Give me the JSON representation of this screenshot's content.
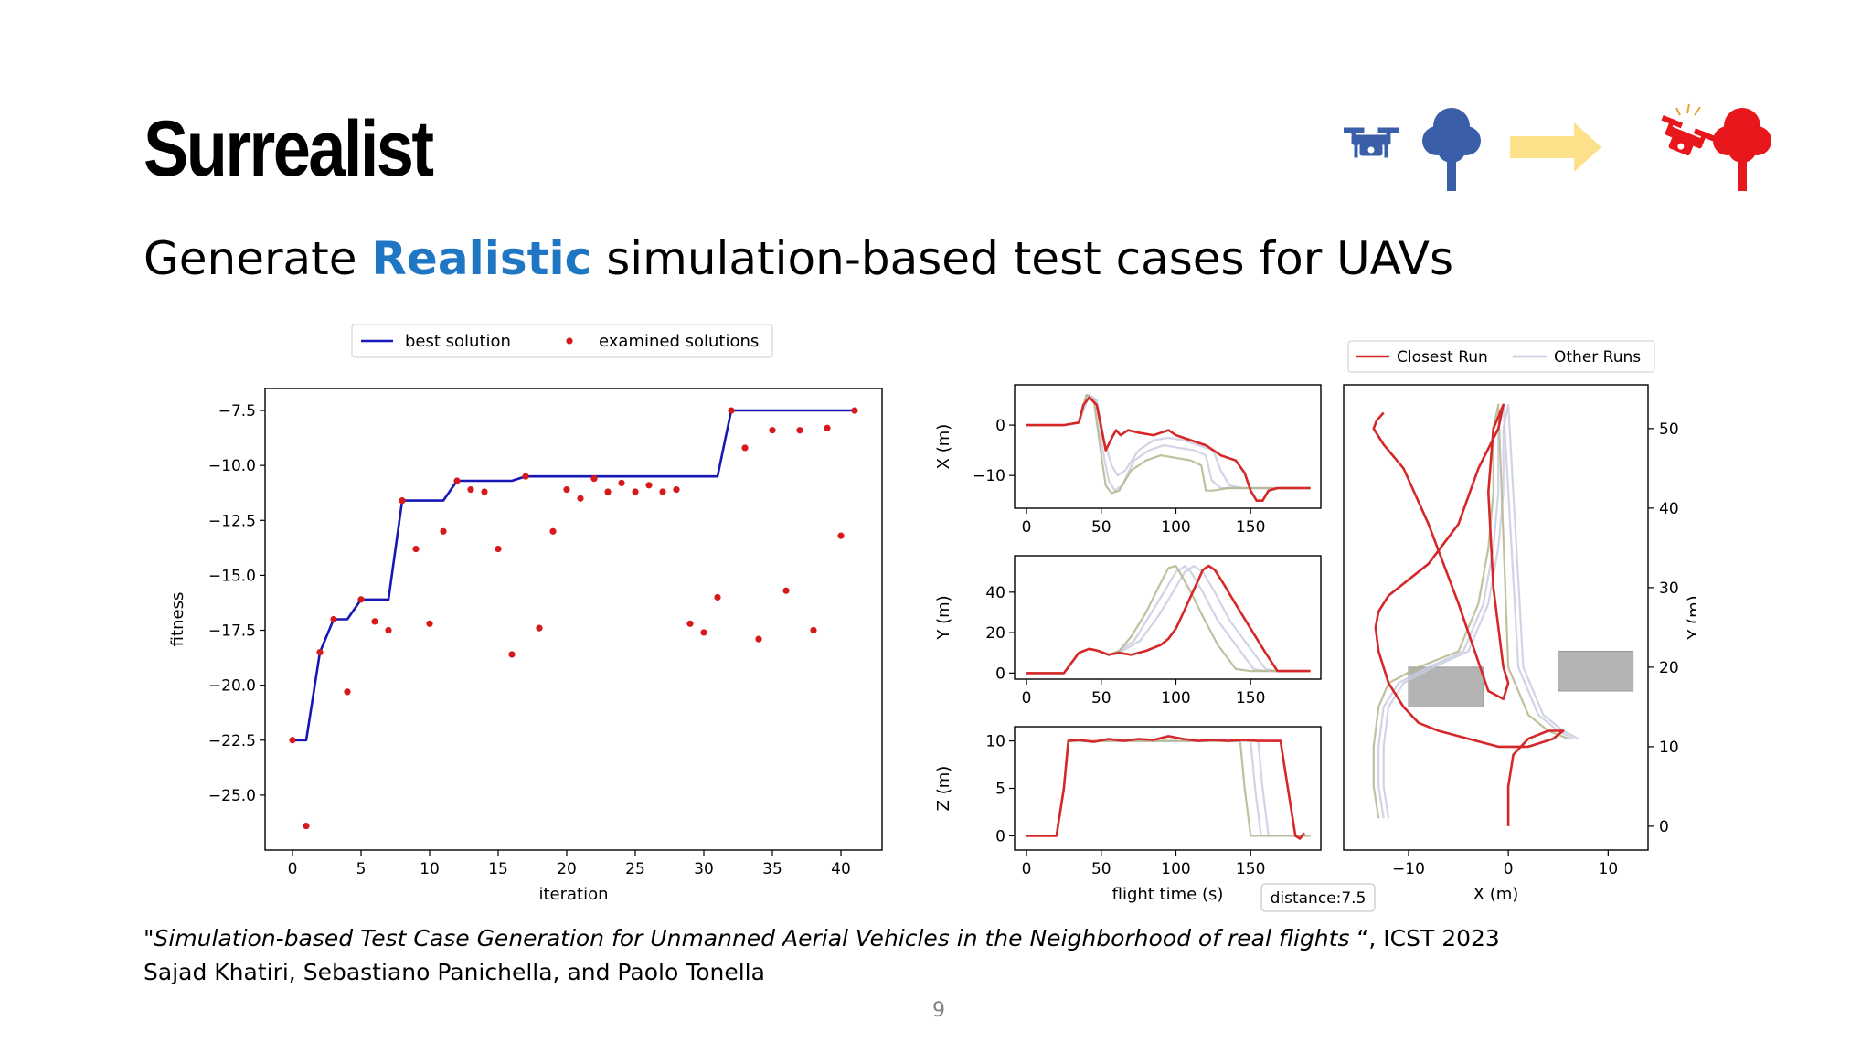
{
  "slide": {
    "title": "Surrealist",
    "subtitle_before": "Generate ",
    "subtitle_highlight": "Realistic",
    "subtitle_after": " simulation-based test cases for UAVs",
    "citation_quote_open": "\"",
    "citation_title": "Simulation-based Test Case Generation for Unmanned Aerial Vehicles in the Neighborhood of real flights",
    "citation_venue": " “, ICST 2023",
    "citation_authors": "Sajad Khatiri, Sebastiano Panichella, and Paolo Tonella",
    "page_number": "9",
    "colors": {
      "highlight": "#1f77c4",
      "drone_blue": "#3a5fa8",
      "crash_red": "#e8171c",
      "arrow_yellow": "#fde08a"
    },
    "icons": [
      "drone-icon",
      "tree-icon",
      "right-arrow-icon",
      "crashed-drone-icon",
      "red-tree-icon"
    ]
  },
  "chart_data": [
    {
      "type": "line",
      "xlabel": "iteration",
      "ylabel": "fitness",
      "xlim": [
        -2,
        43
      ],
      "ylim": [
        -27.5,
        -6.5
      ],
      "xticks": [
        0,
        5,
        10,
        15,
        20,
        25,
        30,
        35,
        40
      ],
      "yticks": [
        -7.5,
        -10.0,
        -12.5,
        -15.0,
        -17.5,
        -20.0,
        -22.5,
        -25.0
      ],
      "ytick_labels": [
        "−7.5",
        "−10.0",
        "−12.5",
        "−15.0",
        "−17.5",
        "−20.0",
        "−22.5",
        "−25.0"
      ],
      "legend": [
        "best solution",
        "examined solutions"
      ],
      "legend_position": "top-center",
      "series": [
        {
          "name": "best solution",
          "color": "#1717b5",
          "x": [
            0,
            1,
            2,
            3,
            4,
            5,
            6,
            7,
            8,
            9,
            10,
            11,
            12,
            13,
            14,
            15,
            16,
            17,
            18,
            19,
            20,
            21,
            22,
            23,
            24,
            25,
            26,
            27,
            28,
            29,
            30,
            31,
            32,
            33,
            34,
            35,
            36,
            37,
            38,
            39,
            40,
            41
          ],
          "y": [
            -22.5,
            -22.5,
            -18.5,
            -17.0,
            -17.0,
            -16.1,
            -16.1,
            -16.1,
            -11.6,
            -11.6,
            -11.6,
            -11.6,
            -10.7,
            -10.7,
            -10.7,
            -10.7,
            -10.7,
            -10.5,
            -10.5,
            -10.5,
            -10.5,
            -10.5,
            -10.5,
            -10.5,
            -10.5,
            -10.5,
            -10.5,
            -10.5,
            -10.5,
            -10.5,
            -10.5,
            -10.5,
            -7.5,
            -7.5,
            -7.5,
            -7.5,
            -7.5,
            -7.5,
            -7.5,
            -7.5,
            -7.5,
            -7.5
          ]
        },
        {
          "name": "examined solutions",
          "color": "#d7191c",
          "x": [
            0,
            1,
            2,
            3,
            4,
            5,
            6,
            7,
            8,
            9,
            10,
            11,
            12,
            13,
            14,
            15,
            16,
            17,
            18,
            19,
            20,
            21,
            22,
            23,
            24,
            25,
            26,
            27,
            28,
            29,
            30,
            31,
            32,
            33,
            34,
            35,
            36,
            37,
            38,
            39,
            40,
            41
          ],
          "y": [
            -22.5,
            -26.4,
            -18.5,
            -17.0,
            -20.3,
            -16.1,
            -17.1,
            -17.5,
            -11.6,
            -13.8,
            -17.2,
            -13.0,
            -10.7,
            -11.1,
            -11.2,
            -13.8,
            -18.6,
            -10.5,
            -17.4,
            -13.0,
            -11.1,
            -11.5,
            -10.6,
            -11.2,
            -10.8,
            -11.2,
            -10.9,
            -11.2,
            -11.1,
            -17.2,
            -17.6,
            -16.0,
            -7.5,
            -9.2,
            -17.9,
            -8.4,
            -15.7,
            -8.4,
            -17.5,
            -8.3,
            -13.2,
            -7.5
          ]
        }
      ]
    },
    {
      "type": "line",
      "ylabel": "X (m)",
      "xlim": [
        -8,
        197
      ],
      "ylim": [
        -16.5,
        8
      ],
      "xticks": [
        0,
        50,
        100,
        150
      ],
      "yticks": [
        0,
        -10
      ],
      "ytick_labels": [
        "0",
        "−10"
      ],
      "series": [
        {
          "name": "Closest Run",
          "color": "#d62728",
          "x": [
            0,
            25,
            35,
            38,
            42,
            47,
            53,
            58,
            60,
            63,
            68,
            75,
            85,
            95,
            100,
            110,
            120,
            130,
            140,
            146,
            150,
            154,
            158,
            162,
            168,
            190
          ],
          "y": [
            0,
            0,
            0.5,
            4,
            5.5,
            4,
            -5,
            -2,
            -1,
            -2,
            -1,
            -1.5,
            -2,
            -1,
            -2,
            -3,
            -4,
            -6,
            -7,
            -9.5,
            -13,
            -15,
            -15,
            -13,
            -12.5,
            -12.5
          ]
        },
        {
          "name": "Other Run 1",
          "color": "#b5b58e",
          "x": [
            0,
            25,
            35,
            40,
            45,
            50,
            53,
            57,
            62,
            70,
            80,
            90,
            100,
            110,
            117,
            120,
            125,
            135,
            150,
            170,
            190
          ],
          "y": [
            0,
            0,
            0.5,
            6,
            5,
            -6,
            -12,
            -13.5,
            -13,
            -9,
            -7,
            -6,
            -6.5,
            -7,
            -8,
            -13,
            -13,
            -12.5,
            -12.5,
            -12.5,
            -12.5
          ]
        },
        {
          "name": "Other Run 2",
          "color": "#c8cde0",
          "x": [
            0,
            25,
            35,
            41,
            46,
            51,
            55,
            59,
            64,
            72,
            82,
            92,
            102,
            112,
            120,
            124,
            130,
            140,
            155,
            175,
            190
          ],
          "y": [
            0,
            0,
            0.5,
            6,
            5,
            -5,
            -11,
            -13,
            -12,
            -7,
            -5,
            -4,
            -4.5,
            -5,
            -6,
            -11,
            -12.5,
            -12.5,
            -12.5,
            -12.5,
            -12.5
          ]
        },
        {
          "name": "Other Run 3",
          "color": "#c8cde0",
          "x": [
            0,
            25,
            35,
            42,
            47,
            52,
            57,
            61,
            66,
            75,
            85,
            95,
            105,
            115,
            125,
            130,
            136,
            145,
            160,
            180,
            190
          ],
          "y": [
            0,
            0,
            0.5,
            6,
            5,
            -3,
            -8,
            -10,
            -9,
            -5,
            -3,
            -2.5,
            -3,
            -4,
            -5,
            -9,
            -12,
            -12.5,
            -12.5,
            -12.5,
            -12.5
          ]
        }
      ]
    },
    {
      "type": "line",
      "ylabel": "Y (m)",
      "xlim": [
        -8,
        197
      ],
      "ylim": [
        -3,
        58
      ],
      "xticks": [
        0,
        50,
        100,
        150
      ],
      "yticks": [
        0,
        20,
        40
      ],
      "series": [
        {
          "name": "Closest Run",
          "color": "#d62728",
          "x": [
            0,
            25,
            30,
            35,
            42,
            48,
            55,
            62,
            70,
            80,
            90,
            95,
            100,
            105,
            110,
            115,
            118,
            122,
            126,
            132,
            140,
            150,
            160,
            168,
            190
          ],
          "y": [
            0,
            0,
            5,
            10,
            12,
            11,
            9,
            10,
            9,
            11,
            14,
            17,
            22,
            30,
            38,
            46,
            51,
            53,
            51,
            44,
            34,
            22,
            10,
            1,
            1
          ]
        },
        {
          "name": "Other Run 1",
          "color": "#b5b58e",
          "x": [
            0,
            25,
            30,
            35,
            42,
            48,
            55,
            62,
            70,
            80,
            88,
            95,
            100,
            104,
            110,
            118,
            128,
            140,
            150,
            190
          ],
          "y": [
            0,
            0,
            5,
            10,
            12,
            11,
            9,
            11,
            18,
            30,
            42,
            52,
            53,
            48,
            40,
            28,
            14,
            2,
            1,
            1
          ]
        },
        {
          "name": "Other Run 2",
          "color": "#c8cde0",
          "x": [
            0,
            25,
            30,
            35,
            42,
            48,
            55,
            62,
            72,
            82,
            92,
            100,
            106,
            110,
            118,
            128,
            140,
            152,
            160,
            190
          ],
          "y": [
            0,
            0,
            5,
            10,
            12,
            11,
            9,
            11,
            16,
            28,
            40,
            50,
            53,
            50,
            40,
            26,
            14,
            2,
            1,
            1
          ]
        },
        {
          "name": "Other Run 3",
          "color": "#c8cde0",
          "x": [
            0,
            25,
            30,
            35,
            42,
            48,
            55,
            64,
            76,
            88,
            98,
            106,
            112,
            118,
            126,
            136,
            148,
            160,
            168,
            190
          ],
          "y": [
            0,
            0,
            5,
            10,
            12,
            11,
            9,
            11,
            16,
            28,
            40,
            50,
            53,
            50,
            40,
            26,
            14,
            2,
            1,
            1
          ]
        }
      ]
    },
    {
      "type": "line",
      "ylabel": "Z (m)",
      "xlabel": "flight time (s)",
      "xlim": [
        -8,
        197
      ],
      "ylim": [
        -1.5,
        11.5
      ],
      "xticks": [
        0,
        50,
        100,
        150
      ],
      "yticks": [
        0,
        5,
        10
      ],
      "annotation": "distance:7.5",
      "series": [
        {
          "name": "Closest Run",
          "color": "#d62728",
          "x": [
            0,
            20,
            25,
            28,
            35,
            45,
            55,
            65,
            75,
            85,
            95,
            105,
            115,
            125,
            135,
            145,
            155,
            165,
            170,
            175,
            180,
            183,
            186
          ],
          "y": [
            0,
            0,
            5,
            10,
            10.1,
            9.9,
            10.2,
            10,
            10.2,
            10.1,
            10.5,
            10.2,
            10,
            10.1,
            10,
            10.1,
            10,
            10,
            10,
            5,
            0,
            -0.3,
            0.3
          ]
        },
        {
          "name": "Other Run 1",
          "color": "#b5b58e",
          "x": [
            0,
            20,
            25,
            28,
            40,
            60,
            80,
            100,
            120,
            140,
            143,
            146,
            150,
            155,
            160,
            165,
            190
          ],
          "y": [
            0,
            0,
            5,
            10,
            10,
            10,
            10,
            10,
            10,
            10,
            10,
            5,
            0,
            0,
            0,
            0,
            0
          ]
        },
        {
          "name": "Other Run 2",
          "color": "#c8cde0",
          "x": [
            0,
            20,
            25,
            28,
            40,
            60,
            80,
            100,
            120,
            140,
            150,
            153,
            157,
            162,
            190
          ],
          "y": [
            0,
            0,
            5,
            10,
            10,
            10,
            10,
            10,
            10,
            10,
            10,
            5,
            0,
            0,
            0
          ]
        },
        {
          "name": "Other Run 3",
          "color": "#c8cde0",
          "x": [
            0,
            20,
            25,
            28,
            40,
            60,
            80,
            100,
            120,
            140,
            155,
            158,
            162,
            168,
            190
          ],
          "y": [
            0,
            0,
            5,
            10,
            10,
            10,
            10,
            10,
            10,
            10,
            10,
            5,
            0,
            0,
            0
          ]
        }
      ]
    },
    {
      "type": "line",
      "xlabel": "X (m)",
      "ylabel": "Y (m)",
      "xlim": [
        -16.5,
        14
      ],
      "ylim": [
        -3,
        55.5
      ],
      "xticks": [
        -10,
        0,
        10
      ],
      "xtick_labels": [
        "−10",
        "0",
        "10"
      ],
      "yticks": [
        0,
        10,
        20,
        30,
        40,
        50
      ],
      "legend": [
        "Closest Run",
        "Other Runs"
      ],
      "legend_position": "top-right",
      "obstacles": [
        {
          "x": [
            -10,
            -2.5
          ],
          "y": [
            15,
            20
          ]
        },
        {
          "x": [
            5,
            12.5
          ],
          "y": [
            17,
            22
          ]
        }
      ],
      "series": [
        {
          "name": "Closest Run",
          "color": "#d62728",
          "x": [
            0,
            0,
            0.5,
            2,
            4,
            5.5,
            4.5,
            2,
            -1,
            -4,
            -7,
            -9,
            -10.5,
            -12,
            -13,
            -13.3,
            -13,
            -12,
            -10,
            -8,
            -5,
            -3,
            -1,
            -0.5,
            -1.5,
            -2,
            -1.5,
            -0.5,
            0,
            -0.5,
            -2,
            -5,
            -8,
            -10.5,
            -12.5,
            -13.5,
            -13.2,
            -12.5
          ],
          "y": [
            0,
            5,
            9,
            11,
            12,
            12,
            11,
            10,
            10,
            11,
            12,
            13,
            15,
            18,
            22,
            25,
            27,
            29,
            31,
            33,
            38,
            45,
            50,
            53,
            50,
            42,
            30,
            20,
            18,
            16,
            17,
            28,
            38,
            45,
            48,
            50,
            51,
            52
          ]
        },
        {
          "name": "Other Run 1",
          "color": "#b5b58e",
          "x": [
            -13,
            -13.5,
            -13.5,
            -13,
            -12,
            -9,
            -5,
            -3,
            -2,
            -1.5,
            -1.5,
            -1,
            0,
            2,
            4,
            6
          ],
          "y": [
            1,
            5,
            10,
            15,
            18,
            20,
            22,
            28,
            35,
            42,
            50,
            53,
            20,
            14,
            12,
            11
          ]
        },
        {
          "name": "Other Run 2",
          "color": "#c8cde0",
          "x": [
            -12.5,
            -13,
            -13,
            -12.5,
            -11,
            -8,
            -4.5,
            -2.5,
            -1.5,
            -1,
            -1,
            -0.5,
            1,
            3,
            5,
            6.5
          ],
          "y": [
            1,
            5,
            10,
            15,
            18,
            20,
            22,
            28,
            35,
            42,
            50,
            53,
            20,
            14,
            12,
            11
          ]
        },
        {
          "name": "Other Run 3",
          "color": "#c8cde0",
          "x": [
            -12,
            -12.5,
            -12.5,
            -12,
            -10.5,
            -7.5,
            -4,
            -2,
            -1,
            -0.5,
            -0.5,
            0,
            1.5,
            3.5,
            5.5,
            7
          ],
          "y": [
            1,
            5,
            10,
            15,
            18,
            20,
            22,
            28,
            35,
            42,
            50,
            53,
            20,
            14,
            12,
            11
          ]
        }
      ]
    }
  ]
}
